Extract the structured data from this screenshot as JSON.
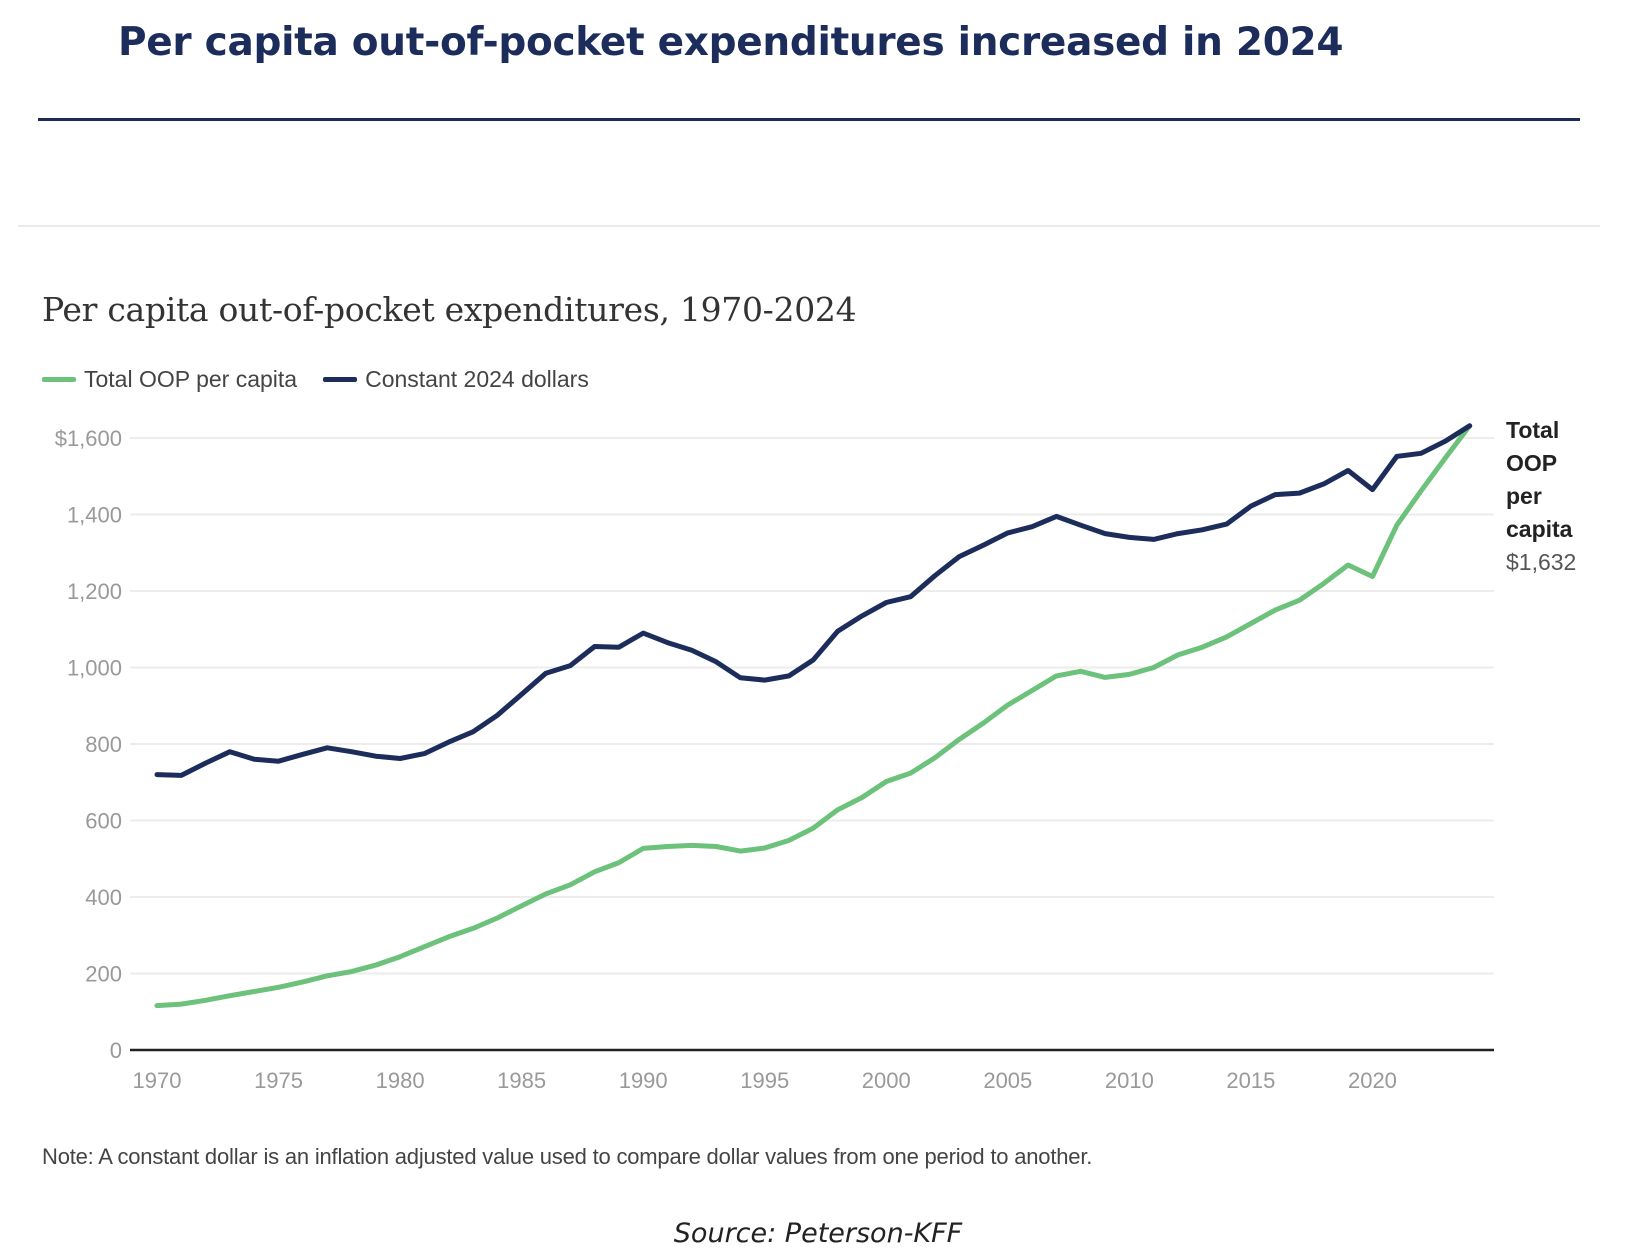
{
  "headline": "Per capita out-of-pocket expenditures increased in 2024",
  "note": "Note: A constant dollar is an inflation adjusted value used to compare dollar values from one period to another.",
  "source": "Source: Peterson-KFF",
  "colors": {
    "headline": "#1c2c5b",
    "total_oop": "#6cc17b",
    "constant_dollars": "#1c2c5b"
  },
  "chart_data": {
    "type": "line",
    "title": "Per capita out-of-pocket expenditures, 1970-2024",
    "xlabel": "",
    "ylabel": "",
    "xlim": [
      1970,
      2025
    ],
    "ylim": [
      0,
      1600
    ],
    "x_ticks": [
      1970,
      1975,
      1980,
      1985,
      1990,
      1995,
      2000,
      2005,
      2010,
      2015,
      2020
    ],
    "x_tick_labels": [
      "1970",
      "1975",
      "1980",
      "1985",
      "1990",
      "1995",
      "2000",
      "2005",
      "2010",
      "2015",
      "2020"
    ],
    "y_ticks": [
      0,
      200,
      400,
      600,
      800,
      1000,
      1200,
      1400,
      1600
    ],
    "y_tick_labels": [
      "0",
      "200",
      "400",
      "600",
      "800",
      "1,000",
      "1,200",
      "1,400",
      "$1,600"
    ],
    "grid": true,
    "legend_position": "top-left",
    "end_label": {
      "lines": [
        "Total",
        "OOP",
        "per",
        "capita"
      ],
      "value": "$1,632"
    },
    "x": [
      1970,
      1971,
      1972,
      1973,
      1974,
      1975,
      1976,
      1977,
      1978,
      1979,
      1980,
      1981,
      1982,
      1983,
      1984,
      1985,
      1986,
      1987,
      1988,
      1989,
      1990,
      1991,
      1992,
      1993,
      1994,
      1995,
      1996,
      1997,
      1998,
      1999,
      2000,
      2001,
      2002,
      2003,
      2004,
      2005,
      2006,
      2007,
      2008,
      2009,
      2010,
      2011,
      2012,
      2013,
      2014,
      2015,
      2016,
      2017,
      2018,
      2019,
      2020,
      2021,
      2022,
      2023,
      2024
    ],
    "series": [
      {
        "name": "Total OOP per capita",
        "color": "#6cc17b",
        "values": [
          116,
          120,
          130,
          142,
          153,
          164,
          178,
          194,
          205,
          222,
          244,
          270,
          296,
          318,
          345,
          377,
          408,
          432,
          466,
          490,
          527,
          532,
          535,
          532,
          520,
          528,
          548,
          580,
          628,
          660,
          702,
          724,
          764,
          812,
          855,
          902,
          940,
          978,
          990,
          974,
          982,
          1000,
          1033,
          1053,
          1080,
          1115,
          1150,
          1176,
          1220,
          1268,
          1238,
          1372,
          1462,
          1548,
          1632
        ]
      },
      {
        "name": "Constant 2024 dollars",
        "color": "#1c2c5b",
        "values": [
          720,
          718,
          750,
          780,
          760,
          755,
          773,
          790,
          780,
          768,
          762,
          775,
          805,
          832,
          875,
          930,
          985,
          1005,
          1055,
          1053,
          1090,
          1065,
          1045,
          1015,
          973,
          967,
          978,
          1020,
          1095,
          1135,
          1170,
          1185,
          1240,
          1290,
          1320,
          1352,
          1368,
          1395,
          1372,
          1350,
          1340,
          1335,
          1350,
          1360,
          1375,
          1422,
          1452,
          1456,
          1480,
          1515,
          1465,
          1552,
          1560,
          1592,
          1632
        ]
      }
    ]
  }
}
